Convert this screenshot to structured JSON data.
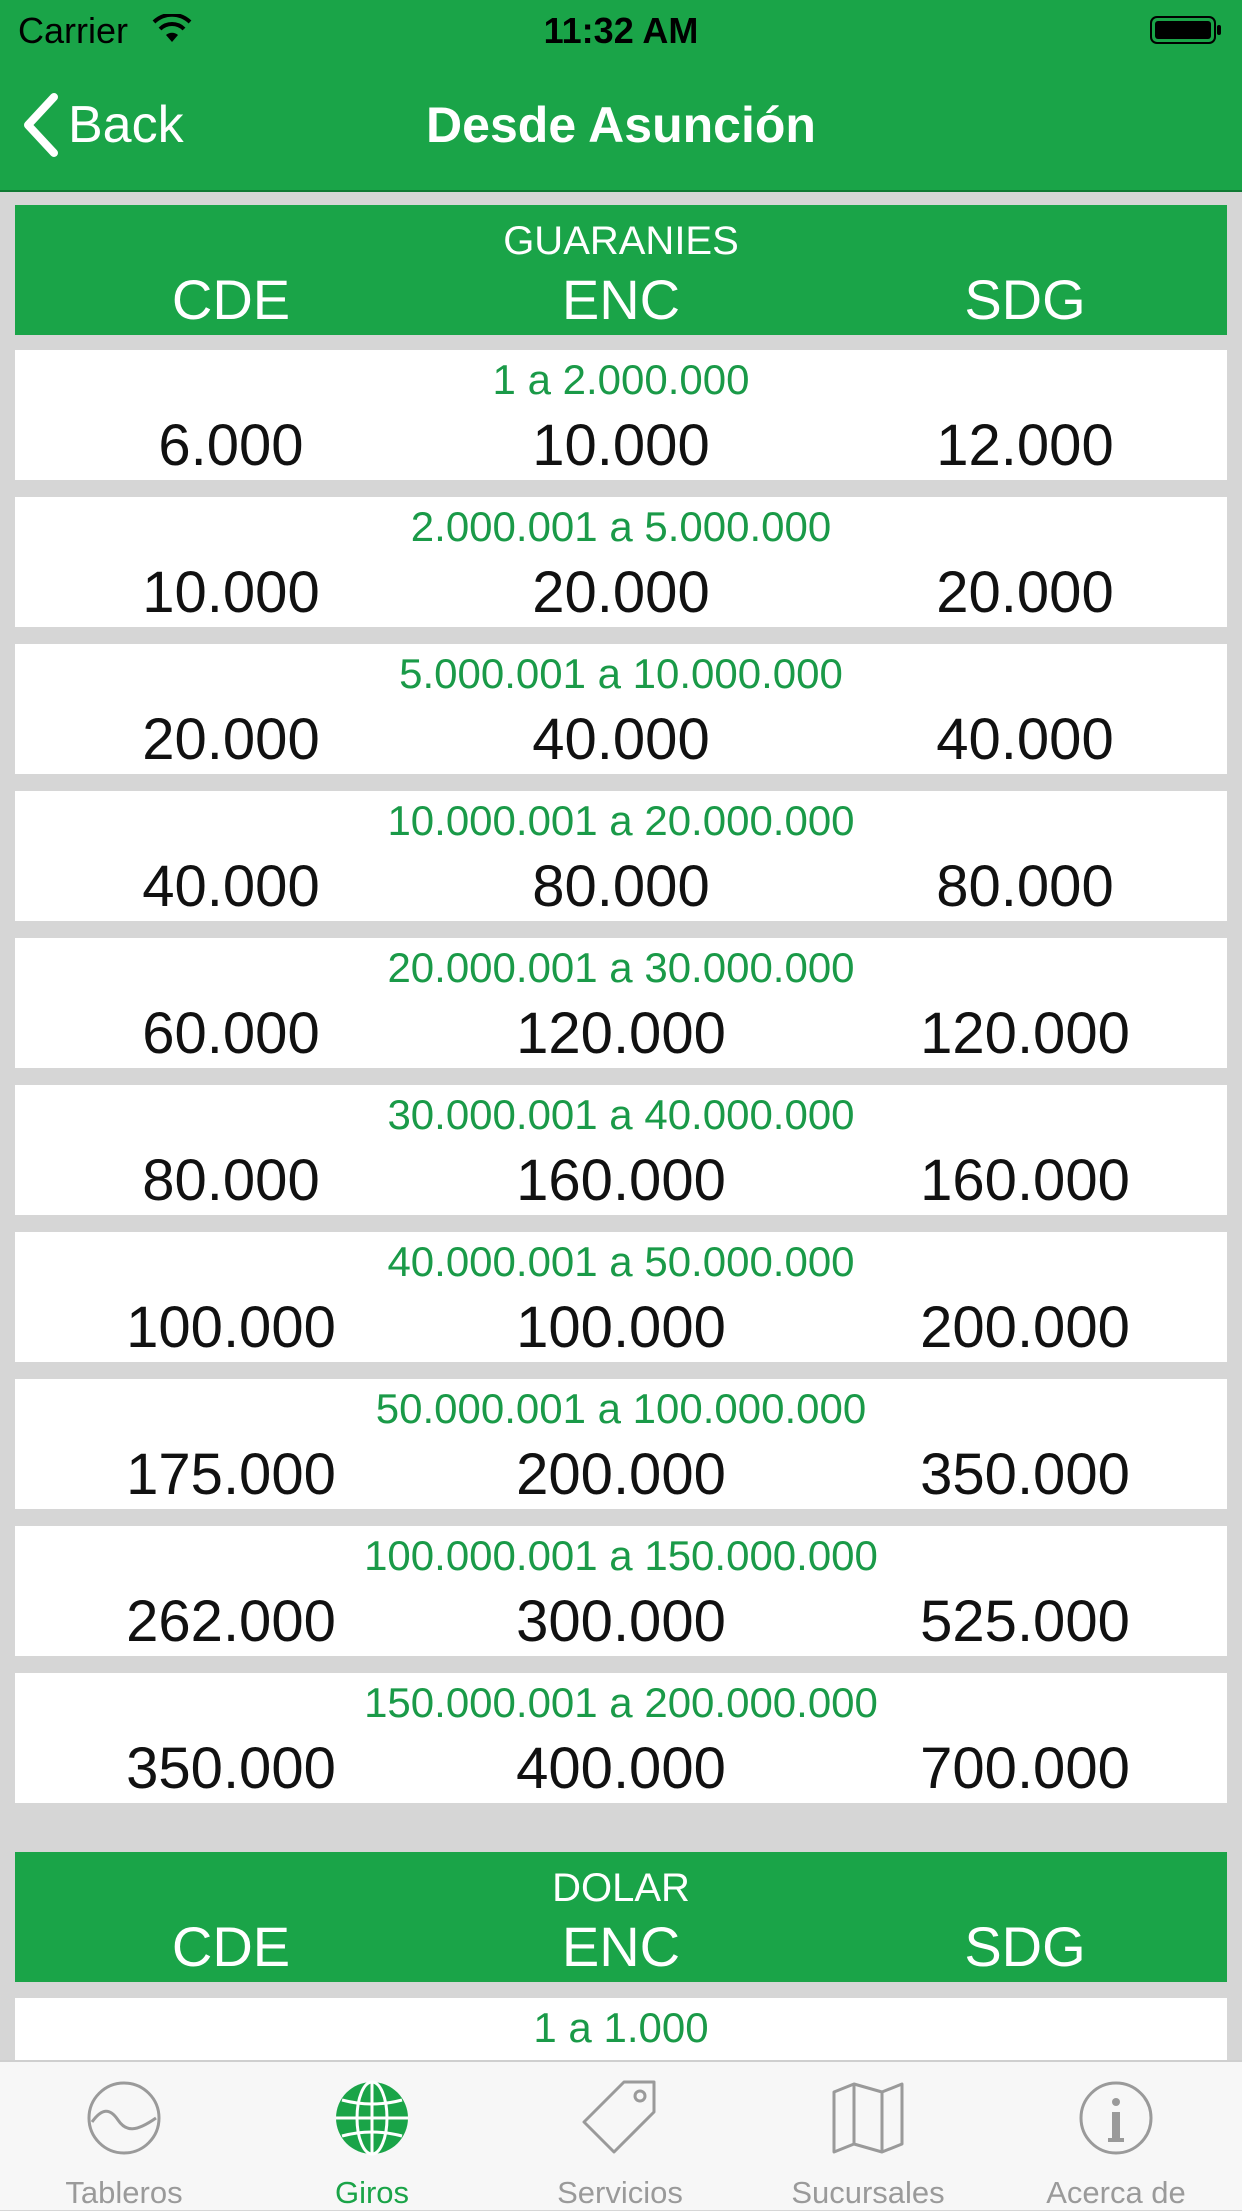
{
  "status": {
    "carrier": "Carrier",
    "time": "11:32 AM"
  },
  "nav": {
    "back_label": "Back",
    "title": "Desde Asunción"
  },
  "sections": [
    {
      "title": "GUARANIES",
      "columns": [
        "CDE",
        "ENC",
        "SDG"
      ],
      "rows": [
        {
          "range": "1 a 2.000.000",
          "values": [
            "6.000",
            "10.000",
            "12.000"
          ]
        },
        {
          "range": "2.000.001 a 5.000.000",
          "values": [
            "10.000",
            "20.000",
            "20.000"
          ]
        },
        {
          "range": "5.000.001 a 10.000.000",
          "values": [
            "20.000",
            "40.000",
            "40.000"
          ]
        },
        {
          "range": "10.000.001 a 20.000.000",
          "values": [
            "40.000",
            "80.000",
            "80.000"
          ]
        },
        {
          "range": "20.000.001 a 30.000.000",
          "values": [
            "60.000",
            "120.000",
            "120.000"
          ]
        },
        {
          "range": "30.000.001 a 40.000.000",
          "values": [
            "80.000",
            "160.000",
            "160.000"
          ]
        },
        {
          "range": "40.000.001 a 50.000.000",
          "values": [
            "100.000",
            "100.000",
            "200.000"
          ]
        },
        {
          "range": "50.000.001 a 100.000.000",
          "values": [
            "175.000",
            "200.000",
            "350.000"
          ]
        },
        {
          "range": "100.000.001 a 150.000.000",
          "values": [
            "262.000",
            "300.000",
            "525.000"
          ]
        },
        {
          "range": "150.000.001 a 200.000.000",
          "values": [
            "350.000",
            "400.000",
            "700.000"
          ]
        }
      ]
    },
    {
      "title": "DOLAR",
      "columns": [
        "CDE",
        "ENC",
        "SDG"
      ],
      "rows": [
        {
          "range": "1 a 1.000",
          "values": [
            "",
            "",
            ""
          ]
        }
      ]
    }
  ],
  "tabs": [
    {
      "label": "Tableros",
      "icon": "chart-wave-icon",
      "active": false
    },
    {
      "label": "Giros",
      "icon": "globe-icon",
      "active": true
    },
    {
      "label": "Servicios",
      "icon": "tag-icon",
      "active": false
    },
    {
      "label": "Sucursales",
      "icon": "map-icon",
      "active": false
    },
    {
      "label": "Acerca de",
      "icon": "info-icon",
      "active": false
    }
  ],
  "colors": {
    "brand_green": "#1aa448",
    "range_text": "#1a9a48",
    "background": "#d6d6d6",
    "tab_inactive": "#9a9a9a"
  }
}
